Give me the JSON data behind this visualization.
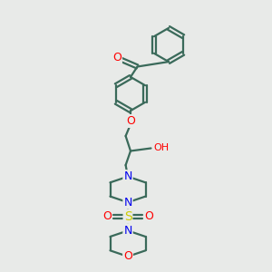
{
  "bg_color": "#e8eae8",
  "bond_color": "#3a6a5a",
  "atom_colors": {
    "O": "#ff0000",
    "N": "#0000ee",
    "S": "#cccc00",
    "C": "#3a6a5a"
  },
  "line_width": 1.6,
  "fig_width": 3.0,
  "fig_height": 3.0,
  "dpi": 100
}
